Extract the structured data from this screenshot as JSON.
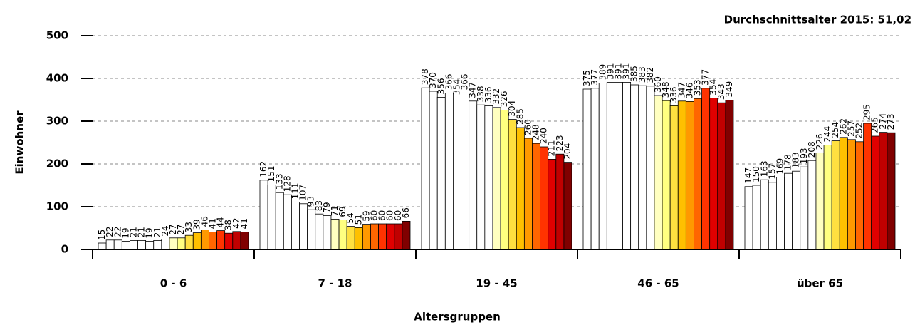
{
  "chart_data": {
    "type": "bar",
    "title": "Durchschnittsalter 2015: 51,02",
    "x_label": "Altersgruppen",
    "y_label": "Einwohner",
    "categories": [
      "0 - 6",
      "7  - 18",
      "19 - 45",
      "46 - 65",
      "über 65"
    ],
    "ylim": [
      0,
      500
    ],
    "yticks": [
      0,
      100,
      200,
      300,
      400,
      500
    ],
    "grid": true,
    "series": [
      {
        "color": "#ffffff",
        "values": [
          15,
          162,
          378,
          375,
          147
        ]
      },
      {
        "color": "#ffffff",
        "values": [
          22,
          151,
          370,
          377,
          150
        ]
      },
      {
        "color": "#ffffff",
        "values": [
          22,
          133,
          356,
          389,
          163
        ]
      },
      {
        "color": "#ffffff",
        "values": [
          19,
          128,
          366,
          391,
          157
        ]
      },
      {
        "color": "#ffffff",
        "values": [
          21,
          111,
          354,
          391,
          169
        ]
      },
      {
        "color": "#ffffff",
        "values": [
          21,
          107,
          366,
          391,
          178
        ]
      },
      {
        "color": "#ffffff",
        "values": [
          19,
          93,
          347,
          385,
          183
        ]
      },
      {
        "color": "#ffffff",
        "values": [
          21,
          83,
          338,
          383,
          193
        ]
      },
      {
        "color": "#ffffff",
        "values": [
          24,
          79,
          336,
          382,
          208
        ]
      },
      {
        "color": "#ffffc0",
        "values": [
          27,
          71,
          332,
          360,
          226
        ]
      },
      {
        "color": "#ffff80",
        "values": [
          27,
          69,
          326,
          348,
          244
        ]
      },
      {
        "color": "#ffe040",
        "values": [
          33,
          54,
          304,
          336,
          254
        ]
      },
      {
        "color": "#ffc000",
        "values": [
          39,
          51,
          285,
          347,
          262
        ]
      },
      {
        "color": "#ff9900",
        "values": [
          46,
          59,
          260,
          346,
          257
        ]
      },
      {
        "color": "#ff6600",
        "values": [
          41,
          60,
          248,
          353,
          252
        ]
      },
      {
        "color": "#ff3300",
        "values": [
          44,
          60,
          240,
          377,
          295
        ]
      },
      {
        "color": "#e00000",
        "values": [
          38,
          60,
          211,
          354,
          265
        ]
      },
      {
        "color": "#c00000",
        "values": [
          42,
          60,
          223,
          343,
          274
        ]
      },
      {
        "color": "#800000",
        "values": [
          41,
          66,
          204,
          349,
          273
        ]
      }
    ]
  }
}
